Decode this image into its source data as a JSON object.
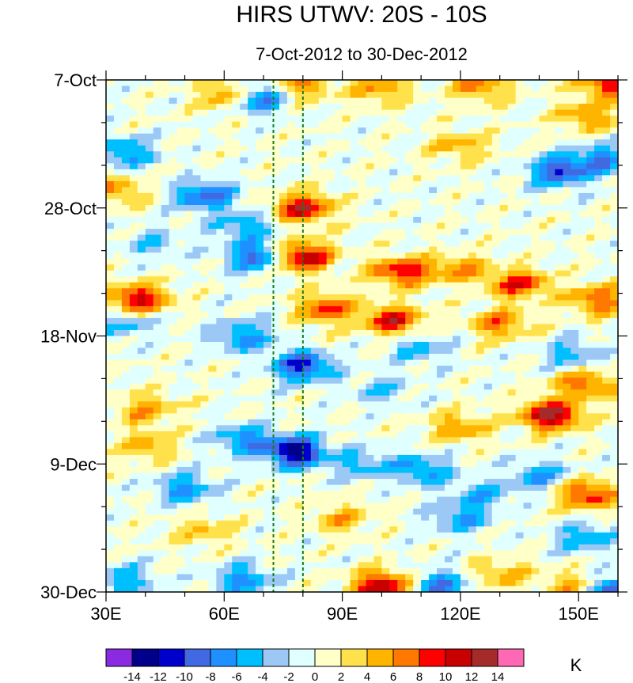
{
  "chart_data": {
    "type": "heatmap",
    "title": "HIRS UTWV: 20S - 10S",
    "subtitle": "7-Oct-2012 to 30-Dec-2012",
    "x_range": [
      30,
      160
    ],
    "x_ticks": [
      {
        "value": 30,
        "label": "30E"
      },
      {
        "value": 60,
        "label": "60E"
      },
      {
        "value": 90,
        "label": "90E"
      },
      {
        "value": 120,
        "label": "120E"
      },
      {
        "value": 150,
        "label": "150E"
      }
    ],
    "y_range_days": [
      0,
      84
    ],
    "y_ticks": [
      {
        "day": 0,
        "label": "7-Oct"
      },
      {
        "day": 21,
        "label": "28-Oct"
      },
      {
        "day": 42,
        "label": "18-Nov"
      },
      {
        "day": 63,
        "label": "9-Dec"
      },
      {
        "day": 84,
        "label": "30-Dec"
      }
    ],
    "reference_lines_lon": [
      72.5,
      80
    ],
    "colorbar": {
      "unit": "K",
      "levels": [
        "-14",
        "-12",
        "-10",
        "-8",
        "-6",
        "-4",
        "-2",
        "0",
        "2",
        "4",
        "6",
        "8",
        "10",
        "12",
        "14"
      ],
      "colors": [
        "#8a2be2",
        "#00008b",
        "#0000cd",
        "#4169e1",
        "#1e90ff",
        "#00bfff",
        "#9cc8f5",
        "#e0ffff",
        "#ffffc8",
        "#ffe14b",
        "#ffb400",
        "#ff7800",
        "#ff0000",
        "#c80000",
        "#a52a2a",
        "#ff69b4"
      ]
    },
    "anomalies": [
      {
        "lon": 68,
        "day": 3,
        "value": -11
      },
      {
        "lon": 62,
        "day": 2.5,
        "value": 9
      },
      {
        "lon": 80,
        "day": 1,
        "value": 6
      },
      {
        "lon": 100,
        "day": 1.5,
        "value": 6
      },
      {
        "lon": 125,
        "day": 1,
        "value": 7
      },
      {
        "lon": 158,
        "day": 0.5,
        "value": 10
      },
      {
        "lon": 152,
        "day": 6,
        "value": 6
      },
      {
        "lon": 145,
        "day": 15,
        "value": -10
      },
      {
        "lon": 156,
        "day": 13,
        "value": -7
      },
      {
        "lon": 35,
        "day": 12,
        "value": -7
      },
      {
        "lon": 120,
        "day": 11,
        "value": 5
      },
      {
        "lon": 32,
        "day": 18,
        "value": 6
      },
      {
        "lon": 55,
        "day": 19,
        "value": -9
      },
      {
        "lon": 80,
        "day": 21,
        "value": 11
      },
      {
        "lon": 65,
        "day": 24,
        "value": -6
      },
      {
        "lon": 68,
        "day": 29,
        "value": -9
      },
      {
        "lon": 80,
        "day": 29,
        "value": 12
      },
      {
        "lon": 105,
        "day": 31.5,
        "value": 10
      },
      {
        "lon": 135,
        "day": 33.5,
        "value": 9
      },
      {
        "lon": 120,
        "day": 31,
        "value": 6
      },
      {
        "lon": 155,
        "day": 36,
        "value": 8
      },
      {
        "lon": 38,
        "day": 36,
        "value": 11
      },
      {
        "lon": 86,
        "day": 37.5,
        "value": 9
      },
      {
        "lon": 103,
        "day": 39.5,
        "value": 10
      },
      {
        "lon": 130,
        "day": 40,
        "value": 7
      },
      {
        "lon": 35,
        "day": 40,
        "value": -5
      },
      {
        "lon": 65,
        "day": 42,
        "value": -7
      },
      {
        "lon": 80,
        "day": 47,
        "value": -11
      },
      {
        "lon": 110,
        "day": 44,
        "value": -5
      },
      {
        "lon": 148,
        "day": 45,
        "value": -5
      },
      {
        "lon": 152,
        "day": 50,
        "value": 8
      },
      {
        "lon": 143,
        "day": 55,
        "value": 13
      },
      {
        "lon": 120,
        "day": 57,
        "value": 6
      },
      {
        "lon": 40,
        "day": 54,
        "value": 6
      },
      {
        "lon": 100,
        "day": 51,
        "value": -4
      },
      {
        "lon": 78,
        "day": 61,
        "value": -14
      },
      {
        "lon": 65,
        "day": 59,
        "value": -7
      },
      {
        "lon": 110,
        "day": 64,
        "value": -7
      },
      {
        "lon": 95,
        "day": 63,
        "value": -5
      },
      {
        "lon": 50,
        "day": 67,
        "value": -7
      },
      {
        "lon": 152,
        "day": 68,
        "value": 10
      },
      {
        "lon": 140,
        "day": 65,
        "value": -6
      },
      {
        "lon": 125,
        "day": 68,
        "value": -5
      },
      {
        "lon": 120,
        "day": 72,
        "value": -6
      },
      {
        "lon": 90,
        "day": 72,
        "value": 5
      },
      {
        "lon": 55,
        "day": 74,
        "value": 4
      },
      {
        "lon": 152,
        "day": 75,
        "value": -6
      },
      {
        "lon": 100,
        "day": 83,
        "value": 12
      },
      {
        "lon": 65,
        "day": 82,
        "value": -7
      },
      {
        "lon": 130,
        "day": 81,
        "value": 5
      },
      {
        "lon": 115,
        "day": 83,
        "value": -8
      },
      {
        "lon": 148,
        "day": 83,
        "value": 5
      },
      {
        "lon": 160,
        "day": 84,
        "value": -11
      },
      {
        "lon": 35,
        "day": 82,
        "value": -6
      },
      {
        "lon": 40,
        "day": 60,
        "value": 5
      },
      {
        "lon": 42,
        "day": 27,
        "value": -4
      }
    ]
  }
}
